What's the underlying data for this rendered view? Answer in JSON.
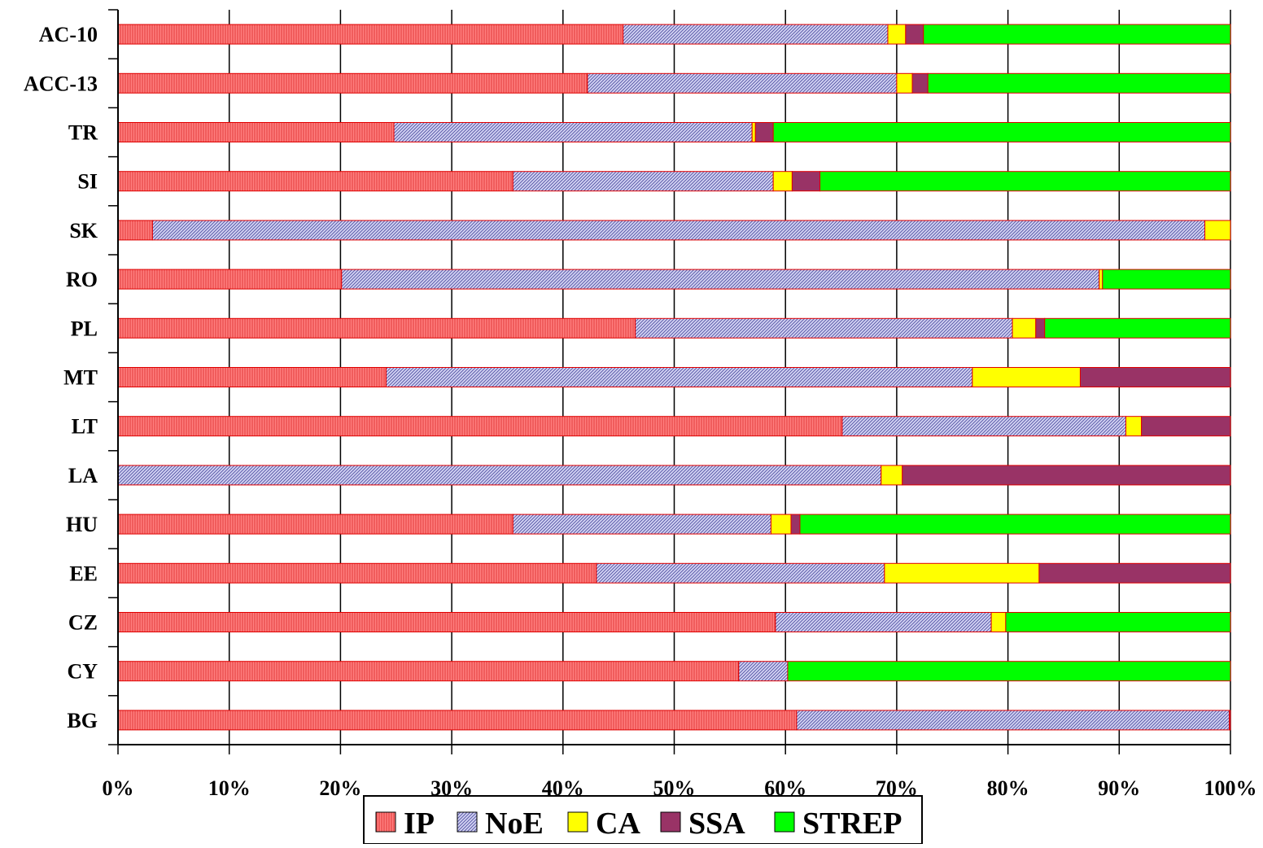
{
  "chart_data": {
    "type": "bar",
    "orientation": "horizontal",
    "stacked": "percent",
    "title": "",
    "xlabel": "",
    "ylabel": "",
    "xlim": [
      0,
      100
    ],
    "x_ticks": [
      "0%",
      "10%",
      "20%",
      "30%",
      "40%",
      "50%",
      "60%",
      "70%",
      "80%",
      "90%",
      "100%"
    ],
    "grid": "vertical",
    "legend_position": "bottom",
    "categories": [
      "AC-10",
      "ACC-13",
      "TR",
      "SI",
      "SK",
      "RO",
      "PL",
      "MT",
      "LT",
      "LA",
      "HU",
      "EE",
      "CZ",
      "CY",
      "BG"
    ],
    "series": [
      {
        "name": "IP",
        "color": "#ff7f7f",
        "pattern": "vertical-hatch",
        "values": [
          45.4,
          42.2,
          24.8,
          35.5,
          3.1,
          20.1,
          46.5,
          24.1,
          65.1,
          0,
          35.5,
          43.0,
          59.1,
          55.8,
          61.0
        ]
      },
      {
        "name": "NoE",
        "color": "#c8c8f0",
        "pattern": "diagonal-hatch",
        "values": [
          23.8,
          27.8,
          32.2,
          23.4,
          94.6,
          68.1,
          33.9,
          52.7,
          25.5,
          68.6,
          23.2,
          25.9,
          19.4,
          4.4,
          38.9
        ]
      },
      {
        "name": "CA",
        "color": "#ffff00",
        "values": [
          1.6,
          1.4,
          0.3,
          1.7,
          2.3,
          0.3,
          2.1,
          9.7,
          1.4,
          1.9,
          1.8,
          13.9,
          1.3,
          0,
          0
        ]
      },
      {
        "name": "SSA",
        "color": "#993366",
        "values": [
          1.6,
          1.4,
          1.6,
          2.5,
          0,
          0,
          0.8,
          13.5,
          8.0,
          29.5,
          0.8,
          17.2,
          0,
          0,
          0.1
        ]
      },
      {
        "name": "STREP",
        "color": "#00ff00",
        "values": [
          27.6,
          27.2,
          41.1,
          36.9,
          0,
          11.5,
          16.7,
          0,
          0,
          0,
          38.7,
          0,
          20.2,
          39.8,
          0
        ]
      }
    ]
  }
}
